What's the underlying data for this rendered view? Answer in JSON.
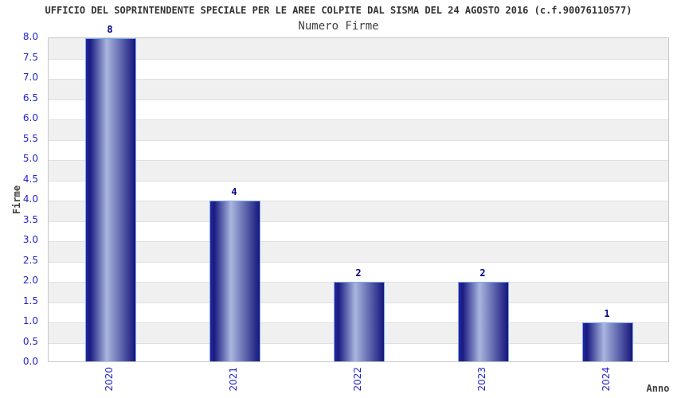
{
  "header": {
    "title": "UFFICIO DEL SOPRINTENDENTE SPECIALE PER LE AREE COLPITE DAL SISMA DEL 24 AGOSTO 2016 (c.f.90076110577)"
  },
  "chart_data": {
    "type": "bar",
    "title": "Numero Firme",
    "xlabel": "Anno",
    "ylabel": "Firme",
    "categories": [
      "2020",
      "2021",
      "2022",
      "2023",
      "2024"
    ],
    "values": [
      8,
      4,
      2,
      2,
      1
    ],
    "value_labels": [
      "8",
      "4",
      "2",
      "2",
      "1"
    ],
    "ylim": [
      0,
      8
    ],
    "ytick_step": 0.5,
    "ytick_labels_top_to_bottom": [
      "8.0",
      "7.5",
      "7.0",
      "6.5",
      "6.0",
      "5.5",
      "5.0",
      "4.5",
      "4.0",
      "3.5",
      "3.0",
      "2.5",
      "2.0",
      "1.5",
      "1.0",
      "0.5",
      "0.0"
    ],
    "legend": "none",
    "grid": "horizontal alternating bands with gridlines every 0.5",
    "colors": {
      "title_text": "#333333",
      "subtitle_text": "#404040",
      "axis_name_text": "#404040",
      "tick_label": "#2222cc",
      "value_label": "#00008b",
      "band_gray": "#f0f0f1",
      "band_white": "#ffffff",
      "gridline": "#e0e0e0",
      "plot_border": "#c8c8c8",
      "bar_border": "#7aabf0",
      "bar_gradient_stops": [
        "#26269a",
        "#1a1a82",
        "#a9b6de",
        "#16167c"
      ],
      "bar_gradient_pcts": [
        0,
        8,
        42,
        100
      ]
    }
  }
}
